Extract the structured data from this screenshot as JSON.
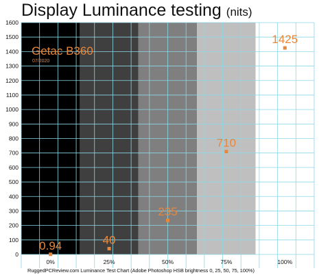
{
  "chart_data": {
    "type": "scatter",
    "title": "Display Luminance testing",
    "title_unit": "(nits)",
    "xlabel": "",
    "ylabel": "",
    "categories": [
      "0%",
      "25%",
      "50%",
      "75%",
      "100%"
    ],
    "ylim": [
      0,
      1600
    ],
    "yticks": [
      0,
      100,
      200,
      300,
      400,
      500,
      600,
      700,
      800,
      900,
      1000,
      1100,
      1200,
      1300,
      1400,
      1500,
      1600
    ],
    "series": [
      {
        "values": [
          0.94,
          40,
          235,
          710,
          1425
        ],
        "labels": [
          "0.94",
          "40",
          "235",
          "710",
          "1425"
        ]
      }
    ],
    "band_colors": [
      "#000000",
      "#3f3f3f",
      "#7f7f7f",
      "#bfbfbf",
      "#ffffff"
    ],
    "grid": true,
    "grid_color": "#8ad8e8",
    "marker_color": "#e8873a",
    "device_name": "Getac B360",
    "device_date": "07/2020",
    "footer": "RuggedPCReview.com Luminance Test Chart (Adobe Photoshop HSB brightness 0, 25, 50, 75, 100%)"
  }
}
